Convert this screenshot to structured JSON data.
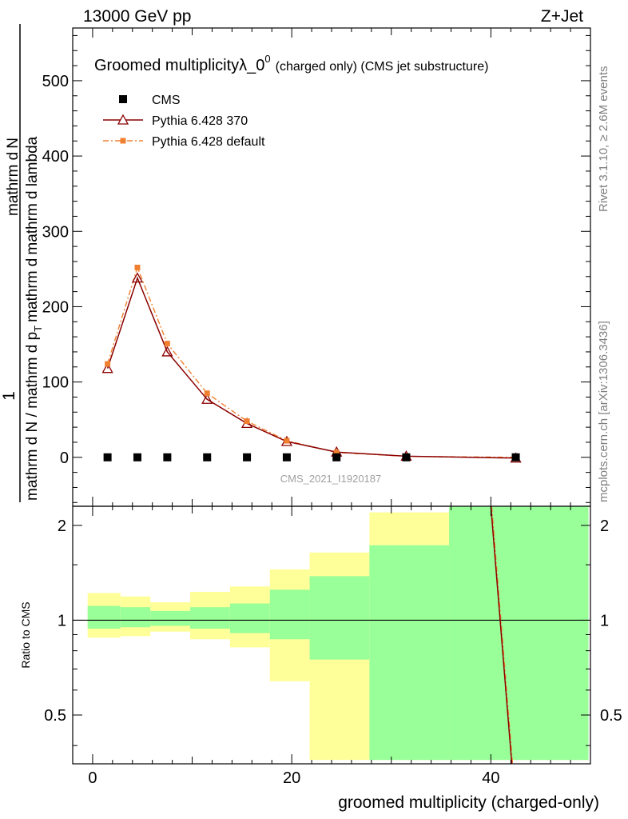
{
  "header": {
    "energy_label": "13000 GeV pp",
    "process_label": "Z+Jet"
  },
  "side_labels": {
    "rivet": "Rivet 3.1.10, ≥ 2.6M events",
    "mcplots": "mcplots.cern.ch [arXiv:1306.3436]"
  },
  "colors": {
    "data": "#000000",
    "pythia370": "#8b0000",
    "pythia_default": "#f08030",
    "band_inner": "#99ff99",
    "band_outer": "#ffff99"
  },
  "chart_data": {
    "type": "line",
    "title": "Groomed multiplicityλ_0",
    "title_sup": "0",
    "title_suffix": "(charged only) (CMS jet substructure)",
    "ylabel_numerator": "1",
    "ylabel_line1": "mathrm d N / mathrm d p",
    "ylabel_line2": "mathrm d N / mathrm d p",
    "ylabel_sub": "T",
    "ylabel_line1b": "mathrm d",
    "ylabel_line1c": "N",
    "ylabel_line2b": "mathrm d lambda",
    "ylabel_line2a": "mathrm d p",
    "ylabel_line2sub": "T",
    "ylabel_mid": "mathrm d",
    "xlabel": "groomed multiplicity (charged-only)",
    "ratio_ylabel": "Ratio to CMS",
    "watermark": "CMS_2021_I1920187",
    "xlim": [
      -2,
      50
    ],
    "ylim": [
      -65,
      570
    ],
    "ratio_ylim": [
      0.35,
      2.3
    ],
    "x_ticks": [
      0,
      20,
      40
    ],
    "y_ticks": [
      0,
      100,
      200,
      300,
      400,
      500
    ],
    "ratio_ticks": [
      0.5,
      1,
      2
    ],
    "x": [
      1.5,
      4.5,
      7.5,
      11.5,
      15.5,
      19.5,
      24.5,
      31.5,
      42.5
    ],
    "series": [
      {
        "name": "CMS",
        "values": [
          0,
          0,
          0,
          0,
          0,
          0,
          0,
          0,
          0
        ]
      },
      {
        "name": "Pythia 6.428 370",
        "values": [
          118,
          238,
          140,
          77,
          45,
          21,
          7,
          1.5,
          -1
        ]
      },
      {
        "name": "Pythia 6.428 default",
        "values": [
          124,
          252,
          151,
          85,
          48,
          22,
          6.5,
          1.3,
          0
        ]
      }
    ],
    "ratio_bins": [
      {
        "x0": -0.5,
        "x1": 2.8,
        "inner": [
          0.94,
          1.11
        ],
        "outer": [
          0.88,
          1.22
        ]
      },
      {
        "x0": 2.8,
        "x1": 5.8,
        "inner": [
          0.95,
          1.1
        ],
        "outer": [
          0.89,
          1.19
        ]
      },
      {
        "x0": 5.8,
        "x1": 9.8,
        "inner": [
          0.96,
          1.07
        ],
        "outer": [
          0.92,
          1.14
        ]
      },
      {
        "x0": 9.8,
        "x1": 13.8,
        "inner": [
          0.94,
          1.1
        ],
        "outer": [
          0.87,
          1.23
        ]
      },
      {
        "x0": 13.8,
        "x1": 17.8,
        "inner": [
          0.91,
          1.13
        ],
        "outer": [
          0.82,
          1.28
        ]
      },
      {
        "x0": 17.8,
        "x1": 21.8,
        "inner": [
          0.87,
          1.25
        ],
        "outer": [
          0.64,
          1.45
        ]
      },
      {
        "x0": 21.8,
        "x1": 27.8,
        "inner": [
          0.75,
          1.38
        ],
        "outer": [
          0.36,
          1.64
        ]
      },
      {
        "x0": 27.8,
        "x1": 35.8,
        "inner": [
          0.36,
          1.73
        ],
        "outer": [
          0.36,
          2.2
        ]
      },
      {
        "x0": 35.8,
        "x1": 49.8,
        "inner": [
          0.36,
          2.3
        ],
        "outer": [
          0.36,
          2.3
        ]
      }
    ],
    "ratio_line": {
      "x": [
        40.0,
        42.1
      ],
      "y": [
        2.3,
        0.35
      ]
    }
  }
}
